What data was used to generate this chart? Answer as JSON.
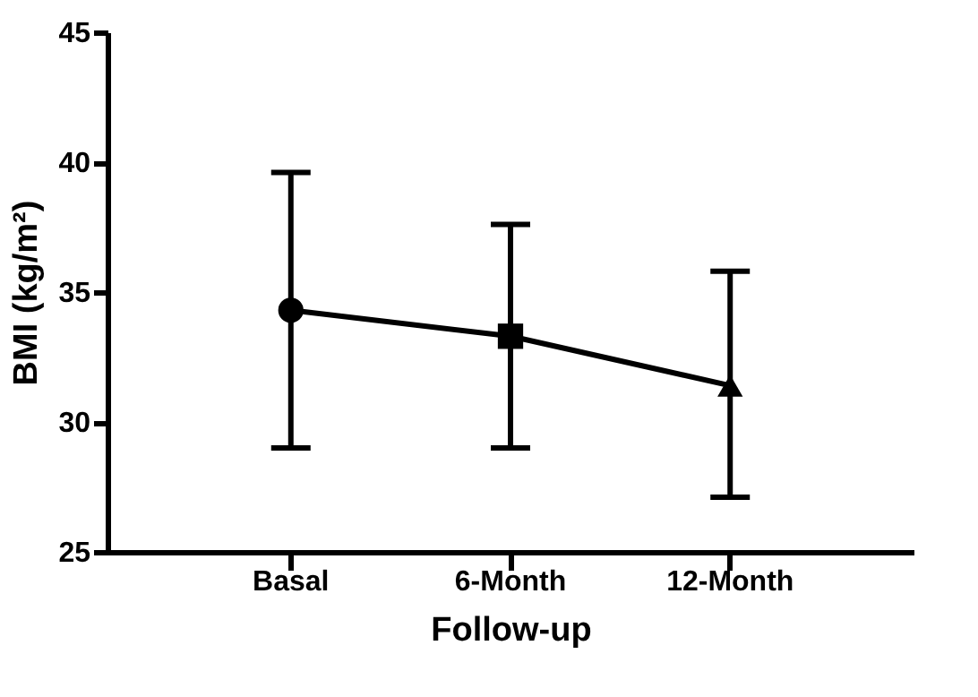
{
  "chart_data": {
    "type": "line",
    "xlabel": "Follow-up",
    "ylabel": "BMI (kg/m²)",
    "categories": [
      "Basal",
      "6-Month",
      "12-Month"
    ],
    "ylim": [
      25,
      45
    ],
    "yticks": [
      25,
      30,
      35,
      40,
      45
    ],
    "grid": false,
    "series": [
      {
        "type": "line",
        "color": "#000000",
        "marker": "none",
        "line_style": "solid",
        "values": [
          34.3,
          33.3,
          31.4
        ],
        "errors": [
          [
            29.0,
            39.6
          ],
          [
            29.0,
            37.6
          ],
          [
            27.1,
            35.8
          ]
        ]
      },
      {
        "type": "scatter",
        "color": "#000000",
        "marker": "circle",
        "x": [
          "Basal"
        ],
        "values": [
          34.3
        ]
      },
      {
        "type": "scatter",
        "color": "#000000",
        "marker": "square",
        "x": [
          "6-Month"
        ],
        "values": [
          33.3
        ]
      },
      {
        "type": "scatter",
        "color": "#000000",
        "marker": "triangle",
        "x": [
          "12-Month"
        ],
        "values": [
          31.4
        ]
      }
    ]
  }
}
